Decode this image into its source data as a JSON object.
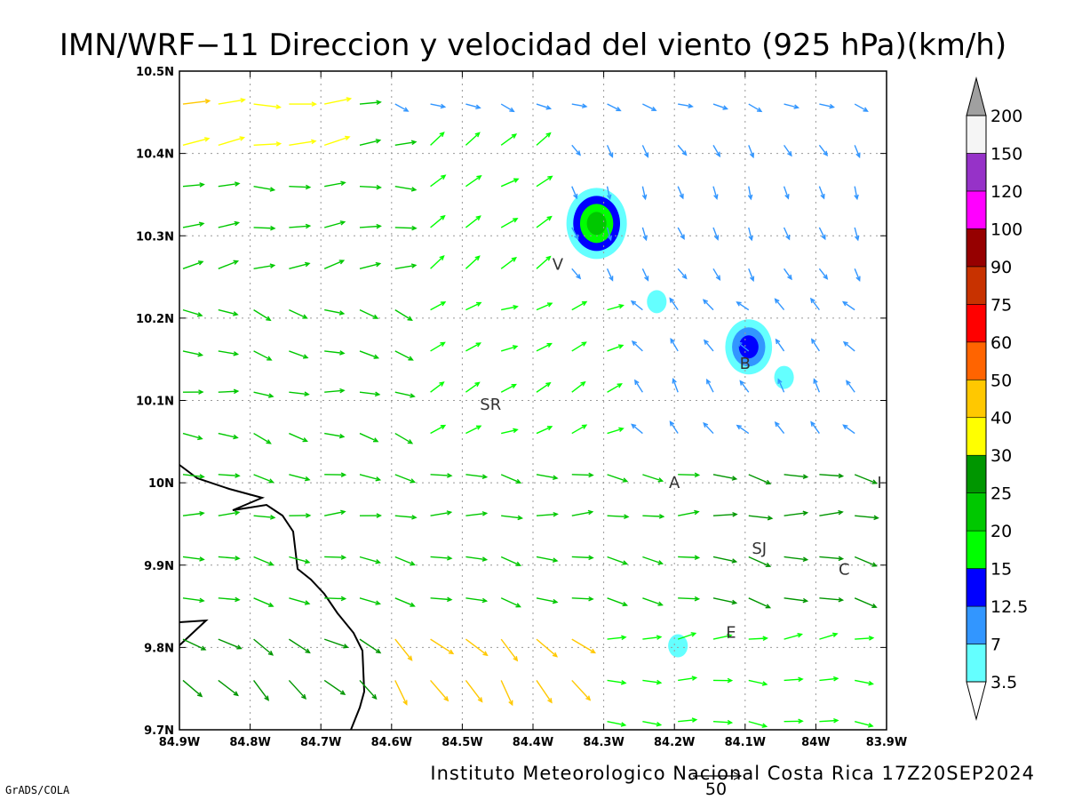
{
  "title": "IMN/WRF−11 Direccion y velocidad del viento (925 hPa)(km/h)",
  "footer": "Instituto Meteorologico Nacional Costa Rica 17Z20SEP2024",
  "credit": "GrADS/COLA",
  "reference_vector": {
    "label": "50",
    "speed": 50
  },
  "axes": {
    "lon_range": [
      -84.9,
      -83.9
    ],
    "lat_range": [
      9.7,
      10.5
    ],
    "x_ticks": [
      {
        "value": -84.9,
        "label": "84.9W"
      },
      {
        "value": -84.8,
        "label": "84.8W"
      },
      {
        "value": -84.7,
        "label": "84.7W"
      },
      {
        "value": -84.6,
        "label": "84.6W"
      },
      {
        "value": -84.5,
        "label": "84.5W"
      },
      {
        "value": -84.4,
        "label": "84.4W"
      },
      {
        "value": -84.3,
        "label": "84.3W"
      },
      {
        "value": -84.2,
        "label": "84.2W"
      },
      {
        "value": -84.1,
        "label": "84.1W"
      },
      {
        "value": -84.0,
        "label": "84W"
      },
      {
        "value": -83.9,
        "label": "83.9W"
      }
    ],
    "y_ticks": [
      {
        "value": 10.5,
        "label": "10.5N"
      },
      {
        "value": 10.4,
        "label": "10.4N"
      },
      {
        "value": 10.3,
        "label": "10.3N"
      },
      {
        "value": 10.2,
        "label": "10.2N"
      },
      {
        "value": 10.1,
        "label": "10.1N"
      },
      {
        "value": 10.0,
        "label": "10N"
      },
      {
        "value": 9.9,
        "label": "9.9N"
      },
      {
        "value": 9.8,
        "label": "9.8N"
      },
      {
        "value": 9.7,
        "label": "9.7N"
      }
    ],
    "grid": true
  },
  "places": [
    {
      "label": "V",
      "lon": -84.365,
      "lat": 10.265
    },
    {
      "label": "SR",
      "lon": -84.46,
      "lat": 10.095
    },
    {
      "label": "B",
      "lon": -84.1,
      "lat": 10.145
    },
    {
      "label": "A",
      "lon": -84.2,
      "lat": 10.0
    },
    {
      "label": "I",
      "lon": -83.91,
      "lat": 10.0
    },
    {
      "label": "SJ",
      "lon": -84.08,
      "lat": 9.92
    },
    {
      "label": "C",
      "lon": -83.96,
      "lat": 9.895
    },
    {
      "label": "E",
      "lon": -84.12,
      "lat": 9.818
    }
  ],
  "colorbar": {
    "levels": [
      "3.5",
      "7",
      "12.5",
      "15",
      "20",
      "25",
      "30",
      "40",
      "50",
      "60",
      "75",
      "90",
      "100",
      "120",
      "150",
      "200"
    ],
    "colors": [
      "#ffffff",
      "#64ffff",
      "#3296ff",
      "#0000ff",
      "#00ff00",
      "#00c800",
      "#009600",
      "#ffff00",
      "#ffc800",
      "#ff6400",
      "#ff0000",
      "#c83200",
      "#960000",
      "#ff00ff",
      "#9632c8",
      "#f5f5f5",
      "#a0a0a0"
    ]
  },
  "shaded_areas": [
    {
      "lon": -84.31,
      "lat": 10.315,
      "levels": [
        "3.5",
        "12.5",
        "15",
        "20"
      ]
    },
    {
      "lon": -84.095,
      "lat": 10.165,
      "levels": [
        "3.5",
        "7",
        "12.5"
      ]
    },
    {
      "lon": -84.045,
      "lat": 10.128,
      "levels": [
        "3.5"
      ]
    },
    {
      "lon": -84.225,
      "lat": 10.22,
      "levels": [
        "3.5"
      ]
    },
    {
      "lon": -84.195,
      "lat": 9.802,
      "levels": [
        "3.5"
      ]
    }
  ],
  "speed_bins": [
    3.5,
    7,
    12.5,
    15,
    20,
    25,
    30,
    40,
    50,
    60,
    75
  ]
}
